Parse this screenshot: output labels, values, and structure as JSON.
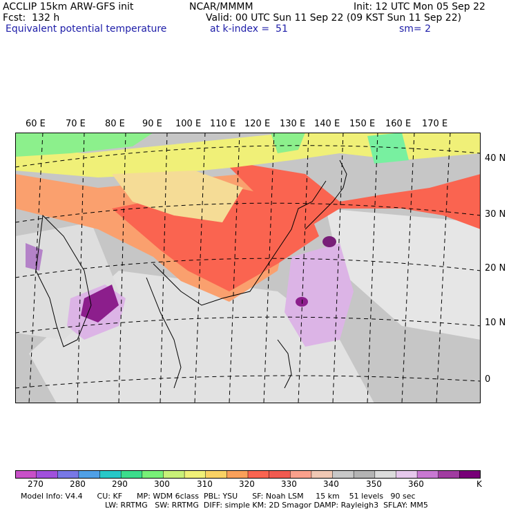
{
  "header": {
    "model": "ACCLIP 15km ARW-GFS init",
    "center": "NCAR/MMMM",
    "init": "Init: 12 UTC Mon 05 Sep 22",
    "fcst": "Fcst:  132 h",
    "valid": "Valid: 00 UTC Sun 11 Sep 22 (09 KST Sun 11 Sep 22)",
    "field": "Equivalent potential temperature",
    "level": "at k-index =  51",
    "smooth": "sm= 2"
  },
  "map": {
    "longitude_labels": [
      "60 E",
      "70 E",
      "80 E",
      "90 E",
      "100 E",
      "110 E",
      "120 E",
      "130 E",
      "140 E",
      "150 E",
      "160 E",
      "170 E"
    ],
    "latitude_labels": [
      "40 N",
      "30 N",
      "20 N",
      "10 N",
      "0"
    ],
    "colors": {
      "ocean_base": "#c6c6c6",
      "hot_band": "#fa6450",
      "warm_band": "#faa06e",
      "yellow_band": "#f0f078",
      "green_band": "#78f078",
      "lilac": "#dcb4e6",
      "purple": "#8c1e8c",
      "light_gray": "#e6e6e6"
    }
  },
  "colorbar": {
    "labels": [
      "270",
      "280",
      "290",
      "300",
      "310",
      "320",
      "330",
      "340",
      "350",
      "360",
      "K"
    ],
    "colors": [
      "#c850c8",
      "#a050dc",
      "#7878e6",
      "#50a0e6",
      "#28c8c8",
      "#3cdc8c",
      "#78f078",
      "#c8f078",
      "#f0f078",
      "#fad264",
      "#faa05a",
      "#fa6450",
      "#f05a50",
      "#faa08c",
      "#f0c8b4",
      "#c8c8c8",
      "#b4b4b4",
      "#dcdcdc",
      "#e6c8ec",
      "#c878d2",
      "#a03ca0",
      "#780078"
    ]
  },
  "footer": {
    "line1": "Model Info: V4.4      CU: KF      MP: WDM 6class  PBL: YSU      SF: Noah LSM     15 km    51 levels   90 sec",
    "line2": "LW: RRTMG   SW: RRTMG  DIFF: simple KM: 2D Smagor DAMP: Rayleigh3  SFLAY: MM5"
  }
}
